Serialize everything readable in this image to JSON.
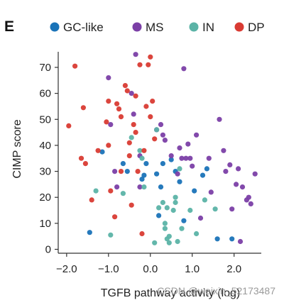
{
  "panel_letter": "E",
  "watermark": "CSDN @weixin_52173487",
  "chart_data": {
    "type": "scatter",
    "xlabel": "TGFB pathway activity (log)",
    "ylabel": "CIMP score",
    "xlim": [
      -2.15,
      2.65
    ],
    "ylim": [
      -1.5,
      76
    ],
    "xticks": [
      -2.0,
      -1.0,
      0.0,
      1.0,
      2.0
    ],
    "xtick_labels": [
      "−2.0",
      "−1.0",
      "0.0",
      "1.0",
      "2.0"
    ],
    "yticks": [
      0,
      10,
      20,
      30,
      40,
      50,
      60,
      70
    ],
    "ytick_labels": [
      "0",
      "10",
      "20",
      "30",
      "40",
      "50",
      "60",
      "70"
    ],
    "grid": false,
    "legend_position": "top",
    "series": [
      {
        "name": "GC-like",
        "color": "#1a73b8",
        "points": [
          [
            -1.45,
            6.5
          ],
          [
            -1.15,
            37.5
          ],
          [
            -0.65,
            33
          ],
          [
            -0.55,
            30
          ],
          [
            -0.2,
            27
          ],
          [
            -0.15,
            28.5
          ],
          [
            -0.1,
            33
          ],
          [
            0.15,
            29
          ],
          [
            0.2,
            13
          ],
          [
            0.25,
            24
          ],
          [
            0.3,
            33
          ],
          [
            0.5,
            34.5
          ],
          [
            0.6,
            30
          ],
          [
            0.7,
            26
          ],
          [
            0.8,
            11
          ],
          [
            1.05,
            22.5
          ],
          [
            1.25,
            28.5
          ],
          [
            1.35,
            31
          ],
          [
            1.6,
            4
          ],
          [
            1.95,
            4
          ]
        ]
      },
      {
        "name": "MS",
        "color": "#7b3fa6",
        "points": [
          [
            -1.0,
            66
          ],
          [
            -0.95,
            48
          ],
          [
            -0.85,
            30
          ],
          [
            -0.8,
            24
          ],
          [
            -0.45,
            60
          ],
          [
            -0.4,
            52
          ],
          [
            -0.35,
            75
          ],
          [
            -0.25,
            36
          ],
          [
            -0.25,
            24
          ],
          [
            0.15,
            46
          ],
          [
            0.25,
            48
          ],
          [
            0.3,
            44
          ],
          [
            0.35,
            42
          ],
          [
            0.5,
            36
          ],
          [
            0.65,
            29
          ],
          [
            0.7,
            39
          ],
          [
            0.75,
            35
          ],
          [
            0.8,
            69.5
          ],
          [
            0.85,
            35
          ],
          [
            0.9,
            40.5
          ],
          [
            0.95,
            35
          ],
          [
            1.0,
            32
          ],
          [
            1.1,
            44
          ],
          [
            1.2,
            12
          ],
          [
            1.4,
            35
          ],
          [
            1.45,
            22
          ],
          [
            1.65,
            50
          ],
          [
            1.75,
            38
          ],
          [
            1.8,
            30
          ],
          [
            1.9,
            32.5
          ],
          [
            1.95,
            15.5
          ],
          [
            2.05,
            25
          ],
          [
            2.1,
            31
          ],
          [
            2.15,
            3
          ],
          [
            2.2,
            24
          ],
          [
            2.3,
            19
          ],
          [
            2.35,
            20
          ],
          [
            2.4,
            17.5
          ],
          [
            2.5,
            29
          ]
        ]
      },
      {
        "name": "IN",
        "color": "#5bb3a6",
        "points": [
          [
            -1.3,
            22.5
          ],
          [
            -0.95,
            5.5
          ],
          [
            -0.65,
            21.5
          ],
          [
            -0.45,
            43
          ],
          [
            -0.25,
            38
          ],
          [
            -0.2,
            35
          ],
          [
            -0.15,
            24
          ],
          [
            0.1,
            2.5
          ],
          [
            0.15,
            46
          ],
          [
            0.2,
            16
          ],
          [
            0.3,
            18
          ],
          [
            0.35,
            10
          ],
          [
            0.35,
            8
          ],
          [
            0.4,
            16
          ],
          [
            0.4,
            4
          ],
          [
            0.45,
            5
          ],
          [
            0.45,
            2.5
          ],
          [
            0.55,
            15
          ],
          [
            0.6,
            18
          ],
          [
            0.6,
            20
          ],
          [
            0.65,
            3
          ],
          [
            0.7,
            31
          ],
          [
            0.75,
            8
          ],
          [
            0.95,
            15
          ],
          [
            1.1,
            6
          ],
          [
            1.3,
            19
          ],
          [
            1.55,
            15.5
          ]
        ]
      },
      {
        "name": "DP",
        "color": "#d93b33",
        "points": [
          [
            -1.95,
            47.5
          ],
          [
            -1.8,
            70.5
          ],
          [
            -1.65,
            35
          ],
          [
            -1.6,
            54.5
          ],
          [
            -1.55,
            33
          ],
          [
            -1.4,
            19
          ],
          [
            -1.25,
            38
          ],
          [
            -1.05,
            49
          ],
          [
            -1.0,
            57
          ],
          [
            -1.0,
            40
          ],
          [
            -0.95,
            22.5
          ],
          [
            -0.85,
            12.5
          ],
          [
            -0.8,
            56
          ],
          [
            -0.75,
            54
          ],
          [
            -0.7,
            51
          ],
          [
            -0.7,
            30
          ],
          [
            -0.6,
            63
          ],
          [
            -0.55,
            61
          ],
          [
            -0.5,
            41
          ],
          [
            -0.5,
            36
          ],
          [
            -0.45,
            17
          ],
          [
            -0.4,
            48
          ],
          [
            -0.35,
            59
          ],
          [
            -0.35,
            45
          ],
          [
            -0.3,
            30
          ],
          [
            -0.25,
            71
          ],
          [
            -0.2,
            6
          ],
          [
            -0.15,
            38
          ],
          [
            -0.1,
            55
          ],
          [
            -0.05,
            71
          ],
          [
            0.0,
            74
          ],
          [
            0.0,
            51
          ],
          [
            0.05,
            57
          ],
          [
            0.1,
            42.5
          ]
        ]
      }
    ]
  }
}
